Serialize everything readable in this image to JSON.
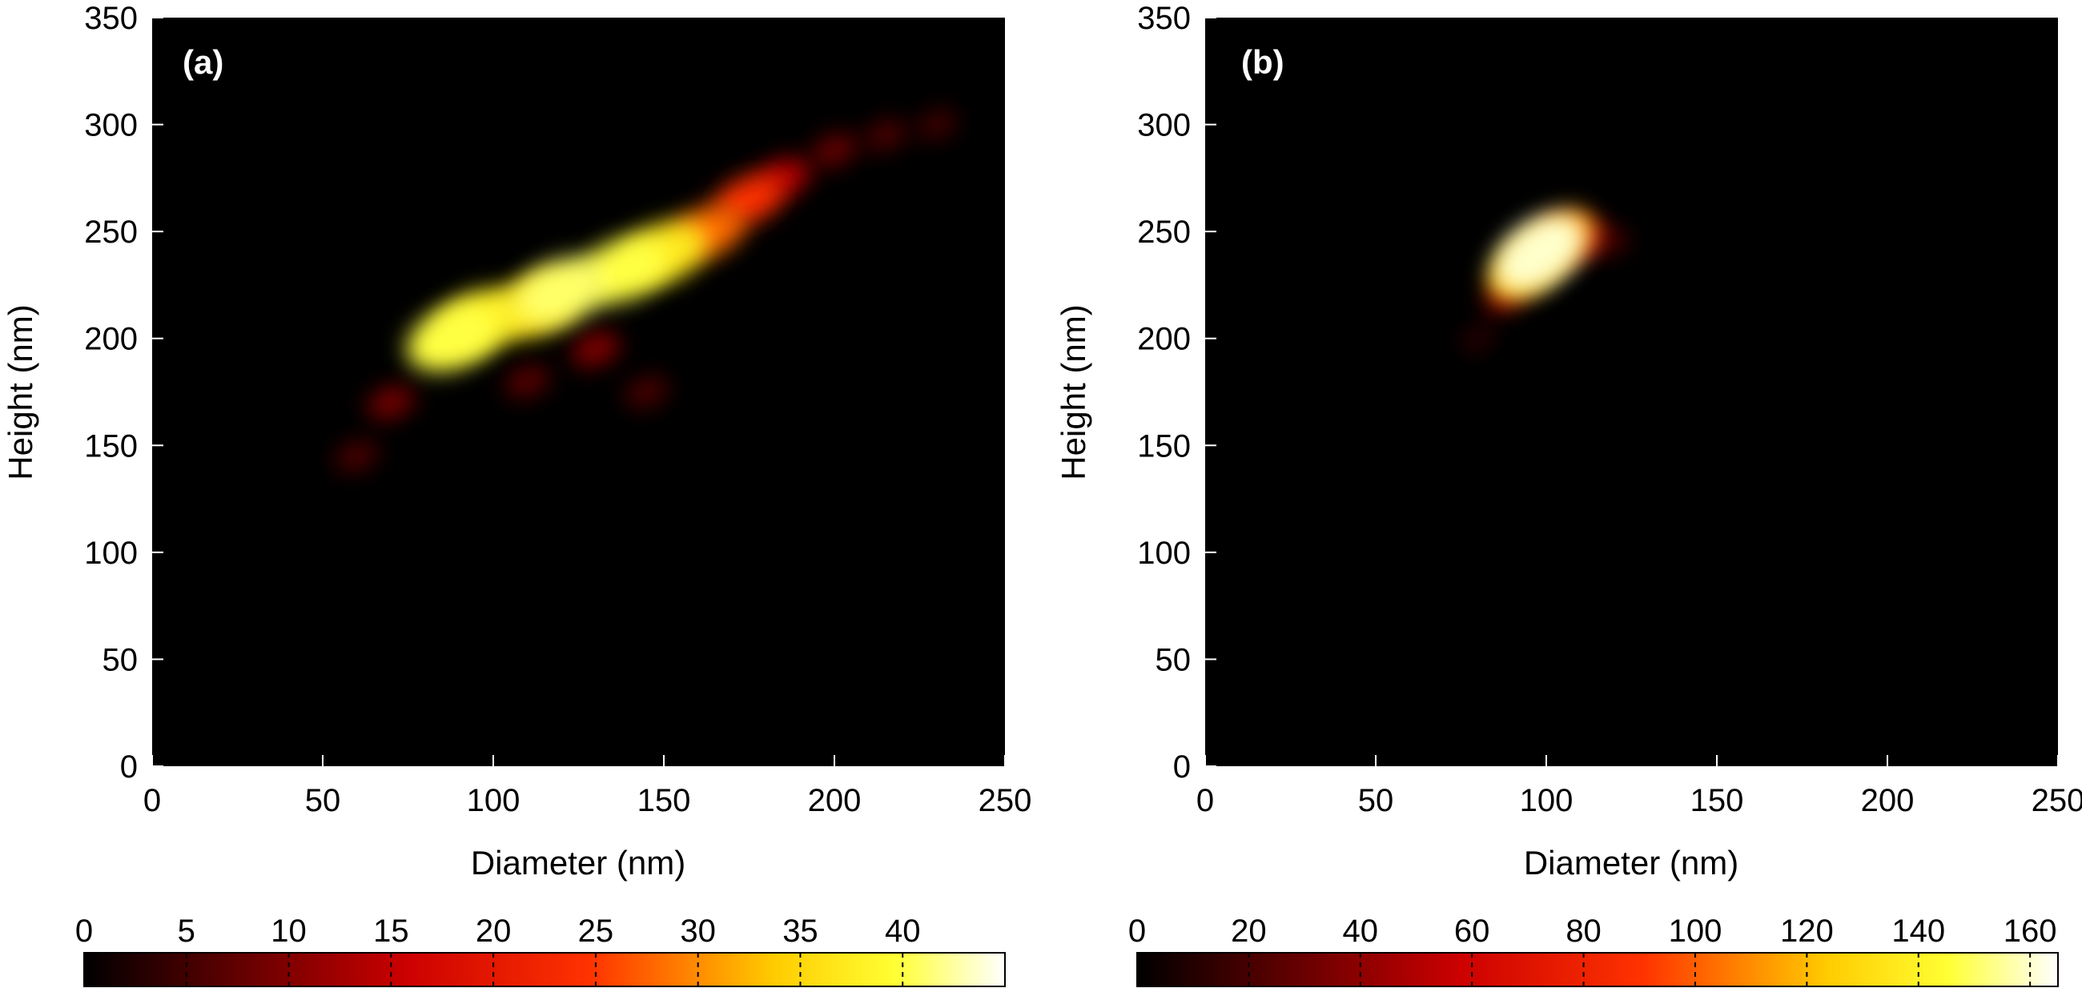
{
  "chart_data": [
    {
      "type": "heatmap",
      "panel_label": "(a)",
      "xlabel": "Diameter (nm)",
      "ylabel": "Height (nm)",
      "xlim": [
        0,
        250
      ],
      "ylim": [
        0,
        350
      ],
      "xticks": [
        0,
        50,
        100,
        150,
        200,
        250
      ],
      "yticks": [
        0,
        50,
        100,
        150,
        200,
        250,
        300,
        350
      ],
      "colorbar": {
        "min": 0,
        "max": 45,
        "ticks": [
          0,
          5,
          10,
          15,
          20,
          25,
          30,
          35,
          40
        ],
        "colormap": "hot"
      },
      "hotspots": [
        {
          "x": 88,
          "y": 200,
          "value": 40
        },
        {
          "x": 96,
          "y": 208,
          "value": 38
        },
        {
          "x": 112,
          "y": 215,
          "value": 36
        },
        {
          "x": 120,
          "y": 222,
          "value": 41
        },
        {
          "x": 138,
          "y": 232,
          "value": 40
        },
        {
          "x": 150,
          "y": 240,
          "value": 37
        },
        {
          "x": 163,
          "y": 250,
          "value": 28
        },
        {
          "x": 175,
          "y": 265,
          "value": 24
        },
        {
          "x": 185,
          "y": 275,
          "value": 14
        },
        {
          "x": 200,
          "y": 288,
          "value": 8
        },
        {
          "x": 215,
          "y": 295,
          "value": 6
        },
        {
          "x": 230,
          "y": 300,
          "value": 5
        },
        {
          "x": 70,
          "y": 170,
          "value": 9
        },
        {
          "x": 60,
          "y": 145,
          "value": 6
        },
        {
          "x": 110,
          "y": 180,
          "value": 7
        },
        {
          "x": 145,
          "y": 175,
          "value": 6
        },
        {
          "x": 130,
          "y": 195,
          "value": 10
        }
      ]
    },
    {
      "type": "heatmap",
      "panel_label": "(b)",
      "xlabel": "Diameter (nm)",
      "ylabel": "Height (nm)",
      "xlim": [
        0,
        250
      ],
      "ylim": [
        0,
        350
      ],
      "xticks": [
        0,
        50,
        100,
        150,
        200,
        250
      ],
      "yticks": [
        0,
        50,
        100,
        150,
        200,
        250,
        300,
        350
      ],
      "colorbar": {
        "min": 0,
        "max": 165,
        "ticks": [
          0,
          20,
          40,
          60,
          80,
          100,
          120,
          140,
          160
        ],
        "colormap": "hot"
      },
      "hotspots": [
        {
          "x": 98,
          "y": 240,
          "value": 160
        },
        {
          "x": 94,
          "y": 233,
          "value": 120
        },
        {
          "x": 104,
          "y": 246,
          "value": 110
        },
        {
          "x": 112,
          "y": 246,
          "value": 45
        },
        {
          "x": 88,
          "y": 220,
          "value": 40
        },
        {
          "x": 80,
          "y": 200,
          "value": 15
        },
        {
          "x": 120,
          "y": 245,
          "value": 18
        }
      ]
    }
  ]
}
